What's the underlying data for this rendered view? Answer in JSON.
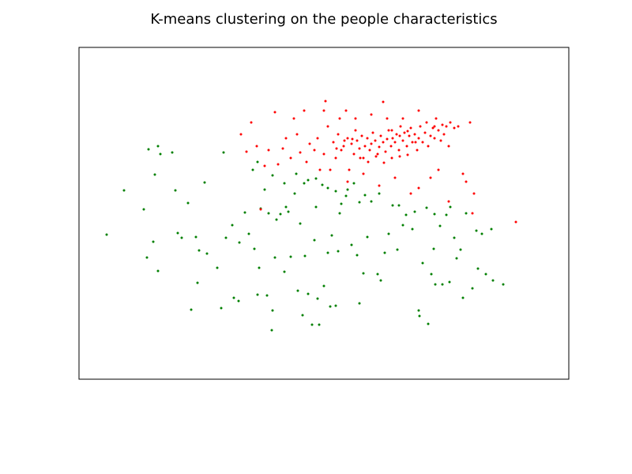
{
  "chart_data": {
    "type": "scatter",
    "title": "K-means clustering on the people characteristics",
    "xlim": [
      0,
      620
    ],
    "ylim": [
      0,
      420
    ],
    "series": [
      {
        "color": "#008000",
        "x": [
          35,
          57,
          82,
          86,
          88,
          96,
          100,
          94,
          100,
          103,
          118,
          122,
          125,
          130,
          138,
          142,
          148,
          150,
          152,
          159,
          162,
          175,
          180,
          183,
          186,
          194,
          196,
          202,
          203,
          210,
          215,
          222,
          226,
          228,
          230,
          238,
          244,
          245,
          248,
          255,
          260,
          262,
          268,
          273,
          277,
          280,
          283,
          286,
          290,
          295,
          298,
          302,
          304,
          310,
          315,
          318,
          320,
          325,
          328,
          332,
          340,
          345,
          352,
          355,
          360,
          365,
          370,
          378,
          382,
          387,
          392,
          397,
          403,
          410,
          414,
          422,
          430,
          431,
          435,
          440,
          442,
          446,
          449,
          451,
          457,
          460,
          465,
          469,
          475,
          478,
          483,
          486,
          498,
          503,
          505,
          510,
          515,
          522,
          524,
          537,
          220,
          226,
          235,
          245,
          260,
          275,
          285,
          290,
          300,
          308,
          315,
          325,
          338,
          348,
          355,
          362,
          380,
          405,
          425,
          450,
          470,
          490,
          240,
          250,
          265,
          300,
          330
        ],
        "y": [
          183,
          239,
          215,
          154,
          291,
          259,
          137,
          174,
          295,
          285,
          287,
          239,
          185,
          179,
          223,
          88,
          180,
          122,
          163,
          249,
          159,
          141,
          90,
          287,
          179,
          195,
          103,
          99,
          173,
          211,
          184,
          165,
          107,
          141,
          216,
          106,
          62,
          87,
          154,
          209,
          136,
          218,
          155,
          235,
          112,
          197,
          81,
          156,
          108,
          69,
          176,
          102,
          69,
          118,
          160,
          92,
          182,
          93,
          162,
          222,
          240,
          170,
          157,
          96,
          134,
          180,
          225,
          133,
          125,
          160,
          184,
          220,
          164,
          195,
          208,
          190,
          87,
          80,
          147,
          217,
          70,
          133,
          165,
          120,
          194,
          120,
          208,
          123,
          179,
          153,
          164,
          103,
          115,
          188,
          140,
          184,
          133,
          190,
          125,
          120,
          265,
          275,
          240,
          258,
          248,
          260,
          248,
          252,
          254,
          246,
          242,
          238,
          232,
          248,
          224,
          233,
          235,
          220,
          212,
          209,
          218,
          210,
          210,
          202,
          212,
          218,
          210
        ]
      },
      {
        "color": "#ff0000",
        "x": [
          205,
          212,
          218,
          225,
          230,
          235,
          240,
          248,
          252,
          258,
          262,
          268,
          272,
          276,
          280,
          285,
          288,
          292,
          298,
          302,
          305,
          310,
          312,
          315,
          318,
          322,
          325,
          328,
          332,
          335,
          338,
          340,
          342,
          345,
          348,
          350,
          352,
          355,
          358,
          360,
          362,
          365,
          368,
          370,
          372,
          375,
          378,
          380,
          382,
          385,
          385,
          388,
          390,
          392,
          395,
          397,
          400,
          402,
          405,
          407,
          410,
          412,
          415,
          418,
          420,
          422,
          425,
          428,
          430,
          432,
          435,
          438,
          440,
          442,
          445,
          448,
          450,
          452,
          455,
          458,
          460,
          462,
          465,
          468,
          470,
          475,
          480,
          495,
          486,
          490,
          498,
          500,
          553,
          420,
          430,
          445,
          455,
          468,
          400,
          380,
          360,
          340,
          310,
          330,
          350,
          370,
          390,
          410,
          430,
          450,
          356,
          366,
          376,
          386,
          396,
          406,
          416,
          326,
          336,
          346,
          396,
          406,
          416,
          426
        ],
        "y": [
          310,
          288,
          325,
          295,
          215,
          270,
          290,
          338,
          272,
          292,
          305,
          280,
          330,
          310,
          287,
          340,
          275,
          298,
          290,
          305,
          265,
          285,
          352,
          320,
          265,
          300,
          280,
          310,
          290,
          295,
          340,
          305,
          265,
          298,
          285,
          315,
          302,
          292,
          308,
          280,
          295,
          305,
          290,
          298,
          312,
          302,
          285,
          294,
          308,
          351,
          300,
          288,
          304,
          315,
          295,
          305,
          300,
          310,
          290,
          320,
          302,
          312,
          295,
          308,
          318,
          300,
          310,
          290,
          305,
          320,
          300,
          312,
          325,
          295,
          308,
          318,
          305,
          330,
          315,
          302,
          322,
          310,
          320,
          295,
          325,
          318,
          320,
          325,
          260,
          250,
          210,
          235,
          199,
          235,
          242,
          255,
          265,
          225,
          255,
          245,
          260,
          250,
          340,
          330,
          330,
          335,
          330,
          330,
          340,
          320,
          280,
          275,
          282,
          274,
          280,
          282,
          284,
          292,
          302,
          304,
          315,
          308,
          314,
          300
        ]
      }
    ]
  }
}
